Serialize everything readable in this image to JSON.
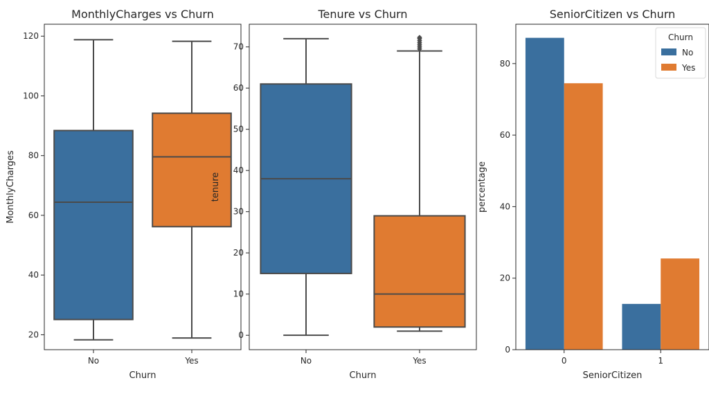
{
  "colors": {
    "no": "#3a6f9e",
    "yes": "#e07b31",
    "line": "#4a4a4a"
  },
  "chart_data": [
    {
      "type": "box",
      "title": "MonthlyCharges vs Churn",
      "xlabel": "Churn",
      "ylabel": "MonthlyCharges",
      "ylim": [
        15,
        124
      ],
      "yticks": [
        20,
        40,
        60,
        80,
        100,
        120
      ],
      "categories": [
        "No",
        "Yes"
      ],
      "boxes": [
        {
          "category": "No",
          "whislo": 18.3,
          "q1": 25.1,
          "median": 64.4,
          "q3": 88.4,
          "whishi": 118.8,
          "outliers": []
        },
        {
          "category": "Yes",
          "whislo": 18.9,
          "q1": 56.2,
          "median": 79.6,
          "q3": 94.2,
          "whishi": 118.3,
          "outliers": []
        }
      ]
    },
    {
      "type": "box",
      "title": "Tenure vs Churn",
      "xlabel": "Churn",
      "ylabel": "tenure",
      "ylim": [
        -3.5,
        75.5
      ],
      "yticks": [
        0,
        10,
        20,
        30,
        40,
        50,
        60,
        70
      ],
      "categories": [
        "No",
        "Yes"
      ],
      "boxes": [
        {
          "category": "No",
          "whislo": 0,
          "q1": 15,
          "median": 38,
          "q3": 61,
          "whishi": 72,
          "outliers": []
        },
        {
          "category": "Yes",
          "whislo": 1,
          "q1": 2,
          "median": 10,
          "q3": 29,
          "whishi": 69,
          "outliers": [
            69.5,
            70,
            70.5,
            71,
            71.5,
            72,
            72.3
          ]
        }
      ]
    },
    {
      "type": "bar",
      "title": "SeniorCitizen vs Churn",
      "xlabel": "SeniorCitizen",
      "ylabel": "percentage",
      "ylim": [
        0,
        91
      ],
      "yticks": [
        0,
        20,
        40,
        60,
        80
      ],
      "categories": [
        "0",
        "1"
      ],
      "legend": {
        "title": "Churn",
        "placement": "top-right"
      },
      "series": [
        {
          "name": "No",
          "values": [
            87.2,
            12.8
          ]
        },
        {
          "name": "Yes",
          "values": [
            74.5,
            25.5
          ]
        }
      ]
    }
  ]
}
